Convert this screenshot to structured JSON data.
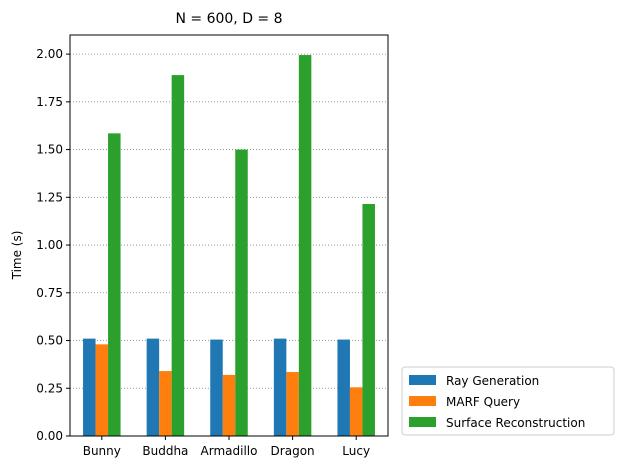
{
  "chart_data": {
    "type": "bar",
    "title": "N = 600, D = 8",
    "xlabel": "",
    "ylabel": "Time (s)",
    "categories": [
      "Bunny",
      "Buddha",
      "Armadillo",
      "Dragon",
      "Lucy"
    ],
    "series": [
      {
        "name": "Ray Generation",
        "color": "#1f77b4",
        "values": [
          0.51,
          0.51,
          0.505,
          0.51,
          0.505
        ]
      },
      {
        "name": "MARF Query",
        "color": "#ff7f0e",
        "values": [
          0.48,
          0.34,
          0.32,
          0.335,
          0.255
        ]
      },
      {
        "name": "Surface Reconstruction",
        "color": "#2ca02c",
        "values": [
          1.585,
          1.89,
          1.5,
          1.995,
          1.215
        ]
      }
    ],
    "ylim": [
      0,
      2.1
    ],
    "yticks": [
      "0.00",
      "0.25",
      "0.50",
      "0.75",
      "1.00",
      "1.25",
      "1.50",
      "1.75",
      "2.00"
    ],
    "grid": "y-dotted",
    "legend_position": "outside-bottom-right"
  }
}
